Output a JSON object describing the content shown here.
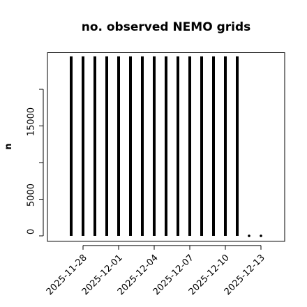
{
  "chart_data": {
    "type": "spike",
    "title": "no. observed NEMO grids",
    "ylabel": "n",
    "x": [
      "2025-11-27",
      "2025-11-28",
      "2025-11-29",
      "2025-11-30",
      "2025-12-01",
      "2025-12-02",
      "2025-12-03",
      "2025-12-04",
      "2025-12-05",
      "2025-12-06",
      "2025-12-07",
      "2025-12-08",
      "2025-12-09",
      "2025-12-10",
      "2025-12-11",
      "2025-12-12",
      "2025-12-13"
    ],
    "values": [
      24500,
      24500,
      24500,
      24500,
      24500,
      24500,
      24500,
      24500,
      24500,
      24500,
      24500,
      24500,
      24500,
      24500,
      24500,
      0,
      0
    ],
    "color": "#000000",
    "xlim": [
      "2025-11-25",
      "2025-12-15"
    ],
    "xticks": [
      "2025-11-28",
      "2025-12-01",
      "2025-12-04",
      "2025-12-07",
      "2025-12-10",
      "2025-12-13"
    ],
    "ylim": [
      -750,
      25000
    ],
    "yticks": [
      0,
      5000,
      15000
    ],
    "yticks_unlabeled": [
      10000,
      20000
    ]
  }
}
